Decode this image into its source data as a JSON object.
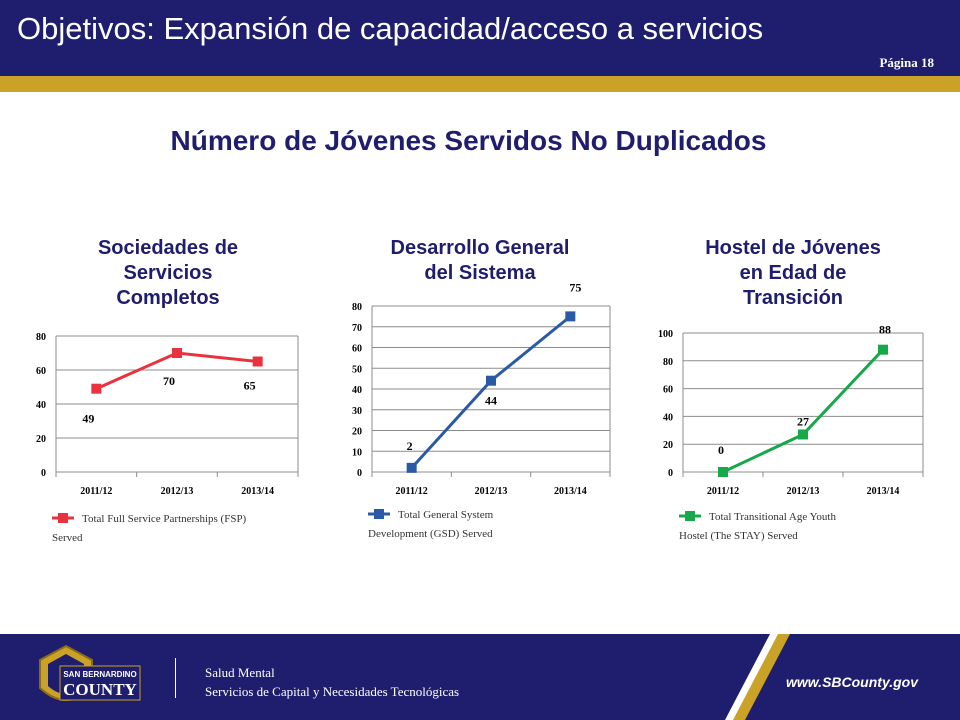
{
  "header": {
    "title": "Objetivos: Expansión de capacidad/acceso a servicios",
    "page": "Página 18"
  },
  "main_title": "Número de Jóvenes Servidos No Duplicados",
  "colors": {
    "navy": "#1f1d6e",
    "gold": "#c9a227"
  },
  "charts": [
    {
      "title_lines": [
        "Sociedades de",
        "Servicios",
        "Completos"
      ],
      "legend": "Total Full Service Partnerships (FSP) Served",
      "legend_lines": [
        "Total Full Service Partnerships (FSP)",
        "Served"
      ]
    },
    {
      "title_lines": [
        "Desarrollo General",
        "del Sistema"
      ],
      "legend": "Total General System Development (GSD) Served",
      "legend_lines": [
        "Total General System",
        "Development (GSD) Served"
      ]
    },
    {
      "title_lines": [
        "Hostel de Jóvenes",
        "en Edad de",
        "Transición"
      ],
      "legend": "Total Transitional Age Youth Hostel (The STAY) Served",
      "legend_lines": [
        "Total Transitional Age Youth",
        "Hostel (The STAY) Served"
      ]
    }
  ],
  "chart_data": [
    {
      "type": "line",
      "title": "Sociedades de Servicios Completos",
      "categories": [
        "2011/12",
        "2012/13",
        "2013/14"
      ],
      "series": [
        {
          "name": "Total Full Service Partnerships (FSP) Served",
          "values": [
            49,
            70,
            65
          ],
          "color": "#e8333f"
        }
      ],
      "ylim": [
        0,
        80
      ],
      "yticks": [
        0,
        20,
        40,
        60,
        80
      ],
      "grid": true,
      "legend_position": "bottom"
    },
    {
      "type": "line",
      "title": "Desarrollo General del Sistema",
      "categories": [
        "2011/12",
        "2012/13",
        "2013/14"
      ],
      "series": [
        {
          "name": "Total General System Development (GSD) Served",
          "values": [
            2,
            44,
            75
          ],
          "color": "#2a5aa6"
        }
      ],
      "ylim": [
        0,
        80
      ],
      "yticks": [
        0,
        10,
        20,
        30,
        40,
        50,
        60,
        70,
        80
      ],
      "grid": true,
      "legend_position": "bottom"
    },
    {
      "type": "line",
      "title": "Hostel de Jóvenes en Edad de Transición",
      "categories": [
        "2011/12",
        "2012/13",
        "2013/14"
      ],
      "series": [
        {
          "name": "Total Transitional Age Youth Hostel (The STAY) Served",
          "values": [
            0,
            27,
            88
          ],
          "color": "#17a84a"
        }
      ],
      "ylim": [
        0,
        100
      ],
      "yticks": [
        0,
        20,
        40,
        60,
        80,
        100
      ],
      "grid": true,
      "legend_position": "bottom"
    }
  ],
  "footer": {
    "line1": "Salud Mental",
    "line2": "Servicios de Capital y Necesidades Tecnológicas",
    "url": "www.SBCounty.gov",
    "logo_top": "SAN BERNARDINO",
    "logo_bottom": "COUNTY"
  }
}
